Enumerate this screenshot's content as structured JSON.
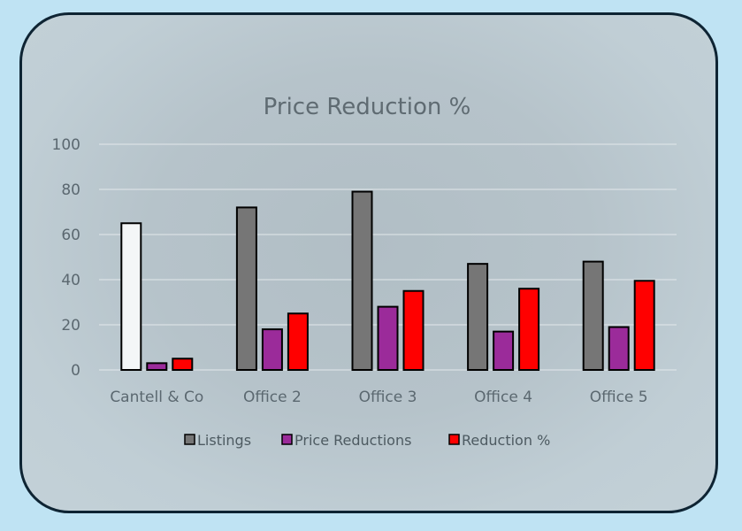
{
  "chart_data": {
    "type": "bar",
    "title": "Price Reduction %",
    "xlabel": "",
    "ylabel": "",
    "ylim": [
      0,
      100
    ],
    "yticks": [
      0,
      20,
      40,
      60,
      80,
      100
    ],
    "grid": true,
    "legend_position": "bottom",
    "categories": [
      "Cantell & Co",
      "Office 2",
      "Office 3",
      "Office 4",
      "Office 5"
    ],
    "series": [
      {
        "name": "Listings",
        "color": "#767676",
        "values": [
          65,
          72,
          79,
          47,
          48
        ]
      },
      {
        "name": "Price Reductions",
        "color": "#9b2b9a",
        "values": [
          3,
          18,
          28,
          17,
          19
        ]
      },
      {
        "name": "Reduction %",
        "color": "#ff0000",
        "values": [
          5,
          25,
          35,
          36,
          39.5
        ]
      }
    ],
    "highlight": {
      "series": 0,
      "category": 0,
      "color": "#f4f6f7"
    }
  }
}
